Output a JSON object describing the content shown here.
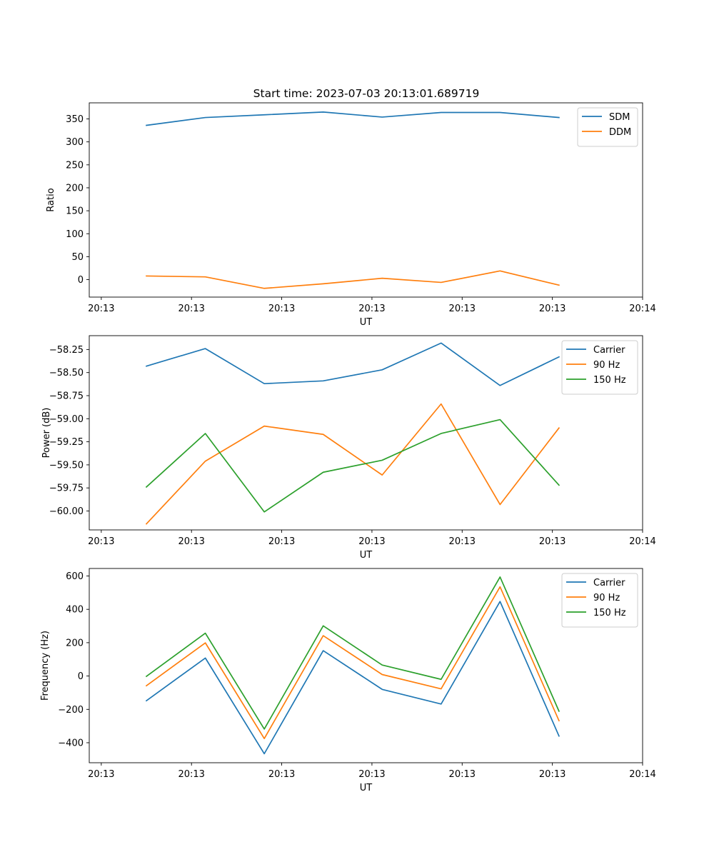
{
  "figure": {
    "title": "Start time: 2023-07-03 20:13:01.689719"
  },
  "colors": {
    "blue": "#1f77b4",
    "orange": "#ff7f0e",
    "green": "#2ca02c"
  },
  "chart_data": [
    {
      "type": "line",
      "id": "ratio",
      "title": "Start time: 2023-07-03 20:13:01.689719",
      "xlabel": "UT",
      "ylabel": "Ratio",
      "xlim": [
        -0.4,
        8.8
      ],
      "ylim": [
        -38,
        385
      ],
      "x_ticks": [
        -0.2,
        1.3,
        2.8,
        4.3,
        5.8,
        7.3,
        8.8
      ],
      "x_tick_labels": [
        "20:13",
        "20:13",
        "20:13",
        "20:13",
        "20:13",
        "20:13",
        "20:14"
      ],
      "y_ticks": [
        0,
        50,
        100,
        150,
        200,
        250,
        300,
        350
      ],
      "y_tick_labels": [
        "0",
        "50",
        "100",
        "150",
        "200",
        "250",
        "300",
        "350"
      ],
      "x": [
        0.55,
        1.53,
        2.51,
        3.49,
        4.47,
        5.45,
        6.43,
        7.41
      ],
      "series": [
        {
          "name": "SDM",
          "color": "#1f77b4",
          "values": [
            336,
            353,
            359,
            365,
            354,
            364,
            364,
            353
          ]
        },
        {
          "name": "DDM",
          "color": "#ff7f0e",
          "values": [
            8,
            6,
            -19,
            -9,
            3,
            -6,
            19,
            -12
          ]
        }
      ],
      "legend": "top-right"
    },
    {
      "type": "line",
      "id": "power",
      "xlabel": "UT",
      "ylabel": "Power (dB)",
      "xlim": [
        -0.4,
        8.8
      ],
      "ylim": [
        -60.205,
        -58.1
      ],
      "x_ticks": [
        -0.2,
        1.3,
        2.8,
        4.3,
        5.8,
        7.3,
        8.8
      ],
      "x_tick_labels": [
        "20:13",
        "20:13",
        "20:13",
        "20:13",
        "20:13",
        "20:13",
        "20:14"
      ],
      "y_ticks": [
        -60.0,
        -59.75,
        -59.5,
        -59.25,
        -59.0,
        -58.75,
        -58.5,
        -58.25
      ],
      "y_tick_labels": [
        "−60.00",
        "−59.75",
        "−59.50",
        "−59.25",
        "−59.00",
        "−58.75",
        "−58.50",
        "−58.25"
      ],
      "x": [
        0.55,
        1.53,
        2.51,
        3.49,
        4.47,
        5.45,
        6.43,
        7.41
      ],
      "series": [
        {
          "name": "Carrier",
          "color": "#1f77b4",
          "values": [
            -58.43,
            -58.24,
            -58.62,
            -58.59,
            -58.47,
            -58.18,
            -58.64,
            -58.33
          ]
        },
        {
          "name": "90 Hz",
          "color": "#ff7f0e",
          "values": [
            -60.14,
            -59.46,
            -59.08,
            -59.17,
            -59.61,
            -58.84,
            -59.93,
            -59.1
          ]
        },
        {
          "name": "150 Hz",
          "color": "#2ca02c",
          "values": [
            -59.74,
            -59.16,
            -60.01,
            -59.58,
            -59.45,
            -59.16,
            -59.01,
            -59.72
          ]
        }
      ],
      "legend": "top-right"
    },
    {
      "type": "line",
      "id": "frequency",
      "xlabel": "UT",
      "ylabel": "Frequency (Hz)",
      "xlim": [
        -0.4,
        8.8
      ],
      "ylim": [
        -520,
        645
      ],
      "x_ticks": [
        -0.2,
        1.3,
        2.8,
        4.3,
        5.8,
        7.3,
        8.8
      ],
      "x_tick_labels": [
        "20:13",
        "20:13",
        "20:13",
        "20:13",
        "20:13",
        "20:13",
        "20:14"
      ],
      "y_ticks": [
        -400,
        -200,
        0,
        200,
        400,
        600
      ],
      "y_tick_labels": [
        "−400",
        "−200",
        "0",
        "200",
        "400",
        "600"
      ],
      "x": [
        0.55,
        1.53,
        2.51,
        3.49,
        4.47,
        5.45,
        6.43,
        7.41
      ],
      "series": [
        {
          "name": "Carrier",
          "color": "#1f77b4",
          "values": [
            -148,
            108,
            -466,
            152,
            -80,
            -168,
            447,
            -360
          ]
        },
        {
          "name": "90 Hz",
          "color": "#ff7f0e",
          "values": [
            -58,
            199,
            -375,
            242,
            9,
            -77,
            535,
            -268
          ]
        },
        {
          "name": "150 Hz",
          "color": "#2ca02c",
          "values": [
            -2,
            257,
            -318,
            301,
            66,
            -20,
            594,
            -211
          ]
        }
      ],
      "legend": "top-right"
    }
  ]
}
